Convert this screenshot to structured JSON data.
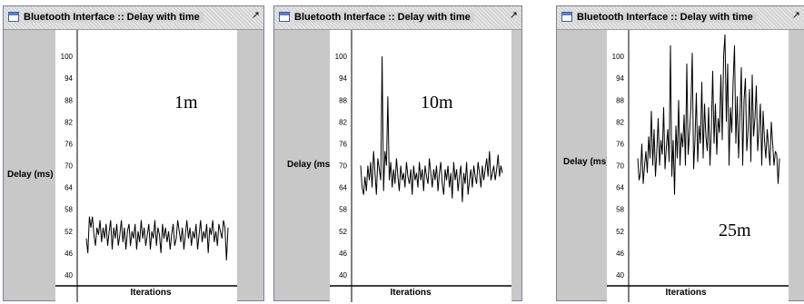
{
  "windows": [
    {
      "title": "Bluetooth Interface :: Delay with time",
      "max_icon": "maximize-icon",
      "distance_label": "1m",
      "chart_data": {
        "type": "line",
        "title": "",
        "xlabel": "Iterations",
        "ylabel": "Delay (ms)",
        "y_ticks": [
          "100",
          "94",
          "88",
          "82",
          "76",
          "70",
          "64",
          "58",
          "52",
          "46",
          "40"
        ],
        "ylim": [
          37,
          106
        ],
        "values": [
          50,
          46,
          56,
          53,
          56,
          51,
          48,
          53,
          51,
          55,
          49,
          53,
          50,
          54,
          48,
          52,
          55,
          47,
          53,
          50,
          54,
          48,
          51,
          55,
          49,
          53,
          47,
          52,
          54,
          48,
          52,
          50,
          54,
          47,
          52,
          49,
          55,
          50,
          53,
          48,
          51,
          54,
          47,
          52,
          50,
          55,
          48,
          53,
          51,
          46,
          54,
          50,
          53,
          49,
          52,
          47,
          51,
          54,
          48,
          50,
          55,
          52,
          49,
          53,
          47,
          51,
          55,
          50,
          53,
          48,
          52,
          50,
          54,
          47,
          51,
          55,
          49,
          52,
          50,
          54,
          46,
          53,
          51,
          55,
          49,
          52,
          48,
          54,
          52,
          50,
          55,
          53,
          44,
          53
        ]
      }
    },
    {
      "title": "Bluetooth Interface :: Delay with time",
      "max_icon": "maximize-icon",
      "distance_label": "10m",
      "chart_data": {
        "type": "line",
        "title": "",
        "xlabel": "Iterations",
        "ylabel": "Delay (ms)",
        "y_ticks": [
          "100",
          "94",
          "88",
          "82",
          "76",
          "70",
          "64",
          "58",
          "52",
          "46",
          "40"
        ],
        "ylim": [
          37,
          106
        ],
        "values": [
          70,
          64,
          62,
          67,
          63,
          70,
          66,
          71,
          64,
          74,
          68,
          62,
          72,
          69,
          66,
          100,
          63,
          74,
          70,
          89,
          66,
          71,
          64,
          69,
          65,
          72,
          67,
          63,
          70,
          66,
          68,
          64,
          71,
          67,
          65,
          69,
          62,
          70,
          66,
          68,
          64,
          71,
          66,
          69,
          63,
          70,
          67,
          65,
          72,
          68,
          64,
          69,
          66,
          70,
          63,
          68,
          71,
          65,
          62,
          69,
          66,
          70,
          64,
          68,
          61,
          71,
          66,
          69,
          63,
          67,
          70,
          60,
          68,
          65,
          71,
          62,
          66,
          69,
          64,
          70,
          67,
          65,
          71,
          68,
          64,
          70,
          66,
          69,
          72,
          67,
          74,
          66,
          68,
          70,
          66,
          69,
          73,
          67,
          70,
          68
        ]
      }
    },
    {
      "title": "Bluetooth Interface :: Delay with time",
      "max_icon": "maximize-icon",
      "distance_label": "25m",
      "chart_data": {
        "type": "line",
        "title": "",
        "xlabel": "Iterations",
        "ylabel": "Delay (ms)",
        "y_ticks": [
          "100",
          "94",
          "88",
          "82",
          "76",
          "70",
          "64",
          "58",
          "52",
          "46",
          "40"
        ],
        "ylim": [
          37,
          106
        ],
        "values": [
          72,
          66,
          68,
          76,
          65,
          70,
          74,
          68,
          78,
          72,
          85,
          70,
          80,
          67,
          74,
          83,
          70,
          77,
          73,
          86,
          69,
          75,
          80,
          71,
          103,
          67,
          77,
          62,
          81,
          72,
          88,
          70,
          79,
          75,
          84,
          70,
          98,
          73,
          79,
          86,
          101,
          69,
          77,
          90,
          71,
          81,
          76,
          93,
          72,
          87,
          78,
          74,
          86,
          70,
          80,
          96,
          76,
          87,
          73,
          83,
          79,
          95,
          77,
          100,
          106,
          82,
          98,
          70,
          86,
          79,
          93,
          103,
          76,
          89,
          72,
          84,
          97,
          70,
          88,
          94,
          74,
          80,
          91,
          71,
          95,
          78,
          83,
          92,
          74,
          80,
          87,
          70,
          85,
          77,
          72,
          80,
          75,
          70,
          82,
          76,
          70,
          74,
          73,
          65,
          72
        ]
      }
    }
  ]
}
